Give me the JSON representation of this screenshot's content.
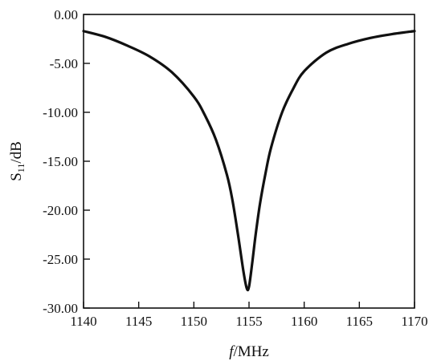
{
  "chart_data": {
    "type": "line",
    "title": "",
    "xlabel": {
      "prefix": "f",
      "suffix": "/MHz"
    },
    "ylabel": {
      "base": "S",
      "sub": "11",
      "suffix": "/dB"
    },
    "xlim": [
      1140,
      1170
    ],
    "ylim": [
      -30,
      0
    ],
    "x_ticks": [
      1140,
      1145,
      1150,
      1155,
      1160,
      1165,
      1170
    ],
    "y_ticks": [
      0,
      -5,
      -10,
      -15,
      -20,
      -25,
      -30
    ],
    "x_tick_labels": [
      "1140",
      "1145",
      "1150",
      "1155",
      "1160",
      "1165",
      "1170"
    ],
    "y_tick_labels": [
      "0.00",
      "-5.00",
      "-10.00",
      "-15.00",
      "-20.00",
      "-25.00",
      "-30.00"
    ],
    "grid": false,
    "legend": "none",
    "line_color": "#111111",
    "series": [
      {
        "x": [
          1140,
          1142,
          1144,
          1146,
          1148,
          1150,
          1151,
          1152,
          1153,
          1153.5,
          1154,
          1154.5,
          1154.8,
          1155,
          1155.3,
          1155.6,
          1156,
          1156.5,
          1157,
          1158,
          1159,
          1160,
          1162,
          1164,
          1166,
          1168,
          1170
        ],
        "y": [
          -1.7,
          -2.3,
          -3.2,
          -4.3,
          -5.9,
          -8.4,
          -10.3,
          -12.8,
          -16.4,
          -19.0,
          -22.5,
          -26.3,
          -28.0,
          -27.8,
          -25.3,
          -22.5,
          -19.3,
          -16.2,
          -13.6,
          -10.0,
          -7.6,
          -5.8,
          -3.9,
          -3.0,
          -2.4,
          -2.0,
          -1.7
        ]
      }
    ]
  }
}
